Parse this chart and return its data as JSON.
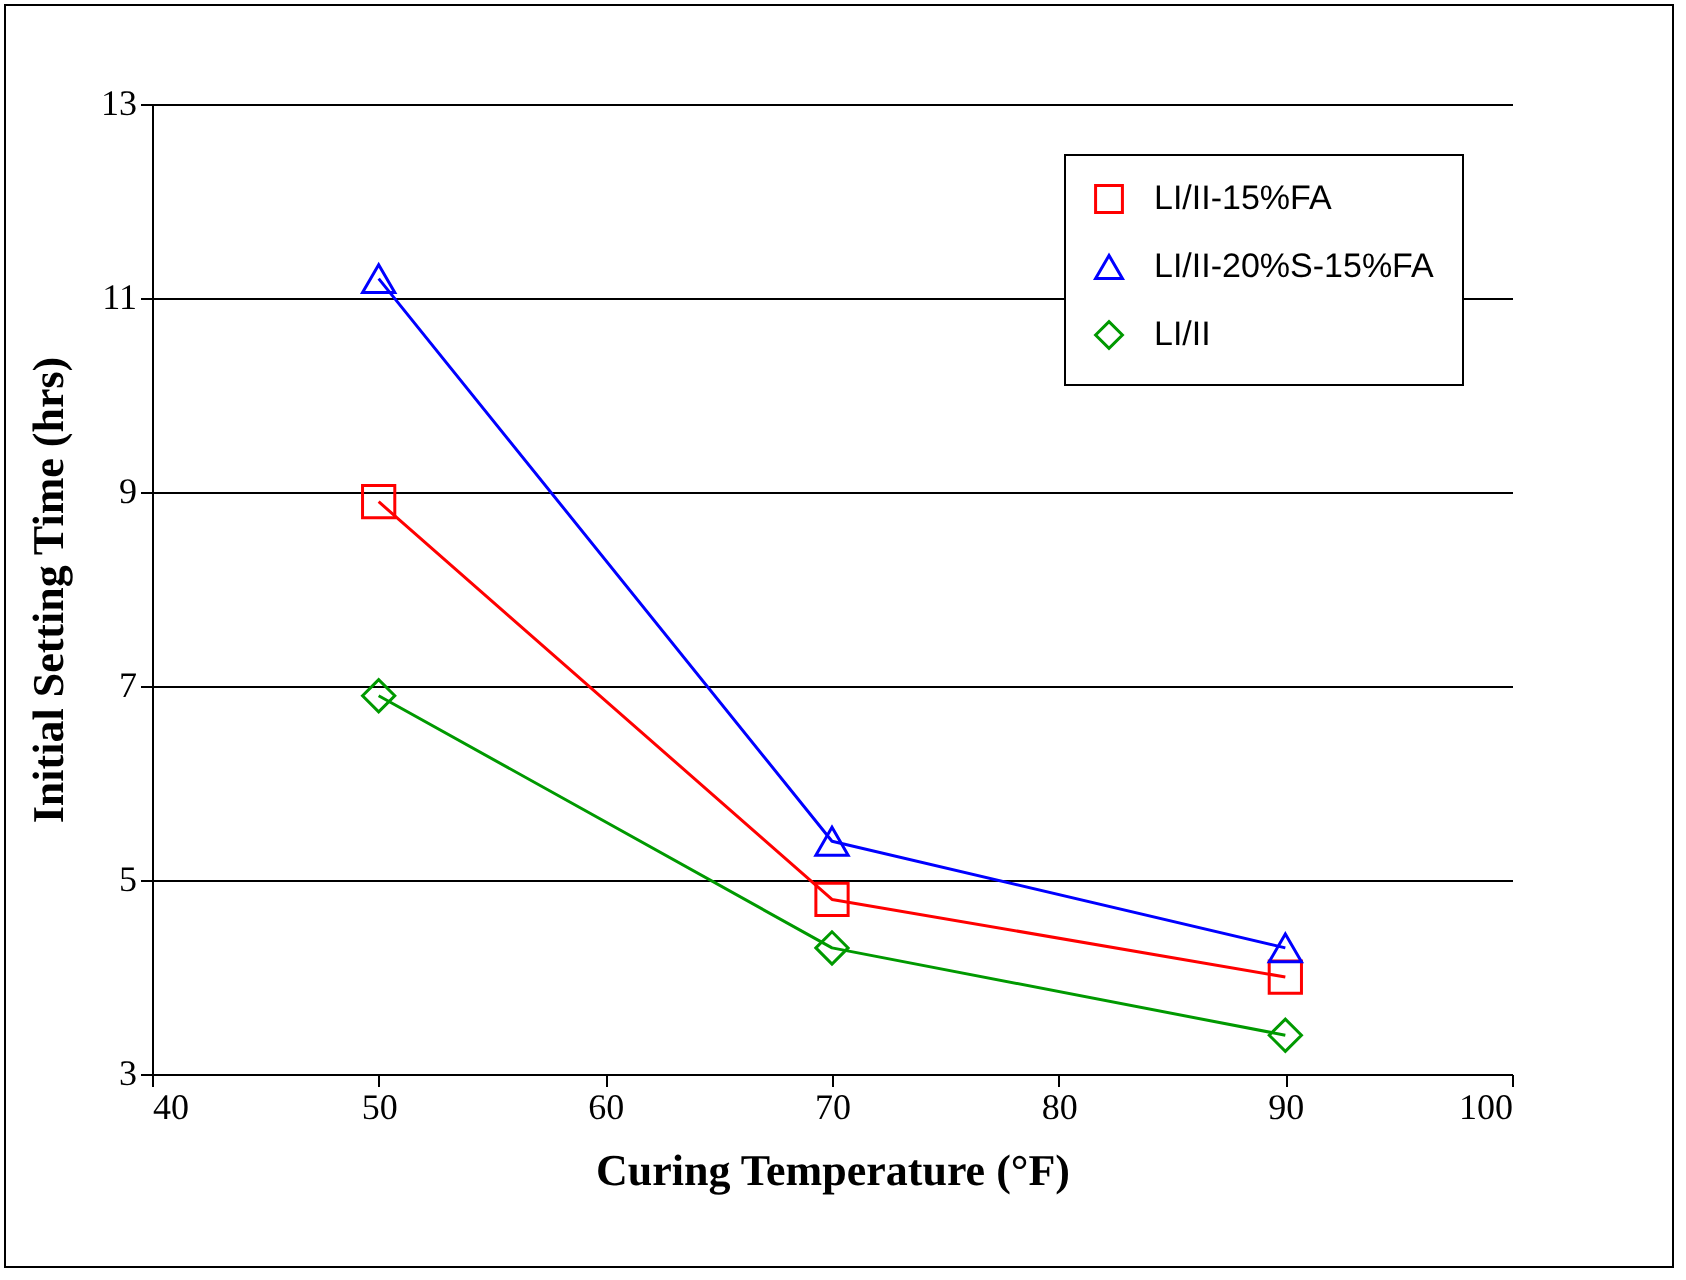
{
  "chart_data": {
    "type": "line",
    "xlabel": "Curing Temperature (°F)",
    "ylabel": "Initial Setting Time (hrs)",
    "x": [
      50,
      70,
      90
    ],
    "series": [
      {
        "name": "LI/II-15%FA",
        "color": "#ff0000",
        "marker": "square",
        "values": [
          8.9,
          4.8,
          4.0
        ]
      },
      {
        "name": "LI/II-20%S-15%FA",
        "color": "#0000ff",
        "marker": "triangle",
        "values": [
          11.2,
          5.4,
          4.3
        ]
      },
      {
        "name": "LI/II",
        "color": "#009900",
        "marker": "diamond",
        "values": [
          6.9,
          4.3,
          3.4
        ]
      }
    ],
    "xlim": [
      40,
      100
    ],
    "xticks": [
      40,
      50,
      60,
      70,
      80,
      90,
      100
    ],
    "ylim": [
      3,
      13
    ],
    "yticks": [
      3,
      5,
      7,
      9,
      11,
      13
    ],
    "grid": "y",
    "legend": "top right",
    "line_style": "solid"
  }
}
